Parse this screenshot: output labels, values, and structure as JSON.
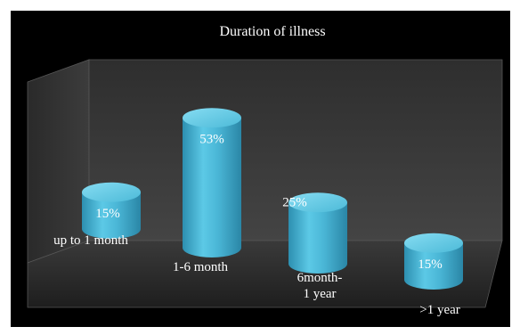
{
  "chart_data": {
    "type": "bar",
    "title": "Duration of illness",
    "categories": [
      "up to 1 month",
      "1-6 month",
      "6month-\n1 year",
      ">1 year"
    ],
    "values": [
      15,
      53,
      25,
      15
    ],
    "value_labels": [
      "15%",
      "53%",
      "25%",
      "15%"
    ],
    "unit": "%",
    "ylim": [
      0,
      60
    ],
    "grid": false,
    "legend": "none",
    "style": "3d-cylinder",
    "colors": {
      "bar": "#4bb8d6",
      "bar_top": "#6fd0ea",
      "background": "#000000",
      "wall": "#333333",
      "floor": "#2a2a2a"
    }
  }
}
